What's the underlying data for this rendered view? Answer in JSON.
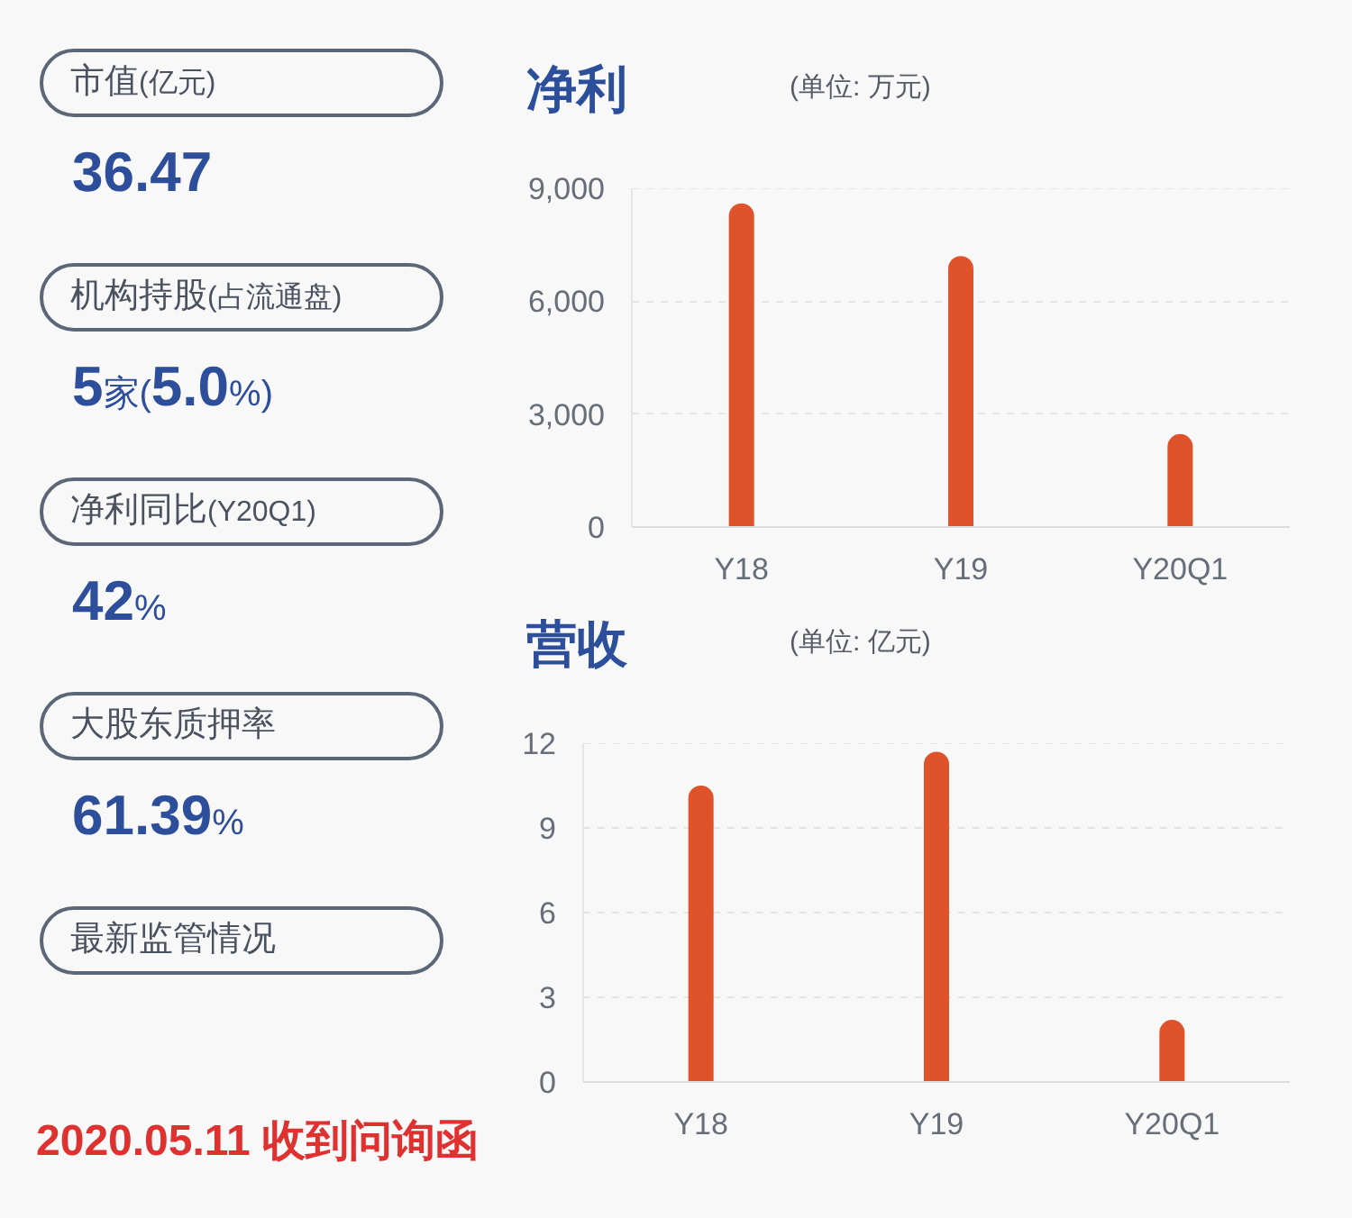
{
  "chart_data": [
    {
      "type": "other",
      "annotations": [
        "市值(亿元)",
        "36.47",
        "机构持股(占流通盘)",
        "5家(5.0%)",
        "净利同比(Y20Q1)",
        "42%",
        "大股东质押率",
        "61.39%",
        "最新监管情况",
        "2020.05.11 收到问询函"
      ]
    },
    {
      "type": "bar",
      "title": "净利",
      "subtitle": "(单位: 万元)",
      "categories": [
        "Y18",
        "Y19",
        "Y20Q1"
      ],
      "values": [
        8600,
        7200,
        2470
      ],
      "color": "#e0532a",
      "ylim": [
        0,
        9000
      ],
      "yticks": [
        0,
        {
          "value": 3000,
          "label": "3,000"
        },
        {
          "value": 6000,
          "label": "6,000"
        },
        {
          "value": 9000,
          "label": "9,000"
        }
      ],
      "grid": "y"
    },
    {
      "type": "bar",
      "title": "营收",
      "subtitle": "(单位: 亿元)",
      "categories": [
        "Y18",
        "Y19",
        "Y20Q1"
      ],
      "values": [
        10.5,
        11.7,
        2.2
      ],
      "color": "#e0532a",
      "ylim": [
        0,
        12
      ],
      "yticks": [
        0,
        3,
        6,
        9,
        12
      ],
      "grid": "y"
    }
  ]
}
